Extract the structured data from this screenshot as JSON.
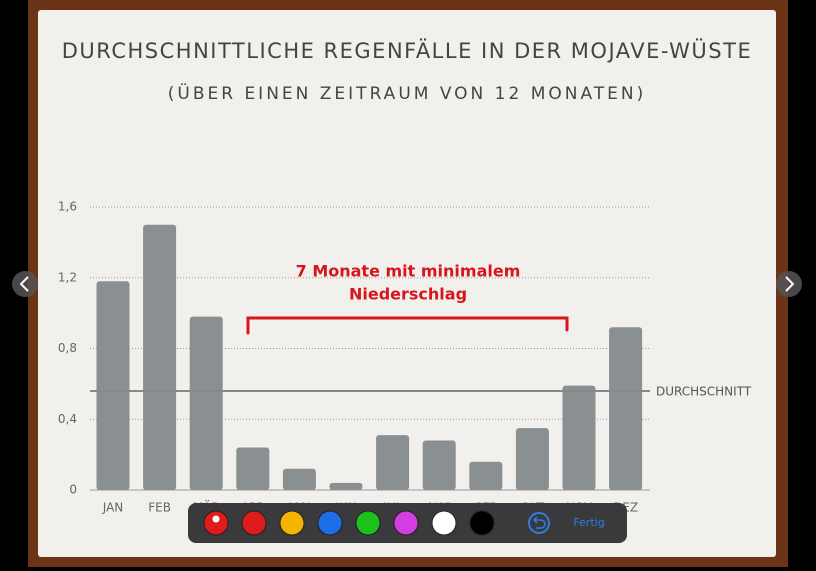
{
  "chart_data": {
    "type": "bar",
    "title": "DURCHSCHNITTLICHE REGENFÄLLE IN DER MOJAVE-WÜSTE",
    "subtitle": "(ÜBER EINEN ZEITRAUM VON 12 MONATEN)",
    "categories": [
      "JAN",
      "FEB",
      "MÄR",
      "APR",
      "MAI",
      "JUN",
      "JUL",
      "AUG",
      "SEP",
      "OKT",
      "NOV",
      "DEZ"
    ],
    "values": [
      1.18,
      1.5,
      0.98,
      0.24,
      0.12,
      0.04,
      0.31,
      0.28,
      0.16,
      0.35,
      0.59,
      0.92
    ],
    "color": "#8a8f92",
    "ylim": [
      0,
      1.6
    ],
    "yticks": [
      0,
      {
        "value": 0.4,
        "label": "0,4"
      },
      {
        "value": 0.8,
        "label": "0,8"
      },
      {
        "value": 1.2,
        "label": "1,2"
      },
      {
        "value": 1.6,
        "label": "1,6"
      }
    ],
    "grid": true,
    "average": {
      "label": "DURCHSCHNITT",
      "value": 0.56
    },
    "annotation": [
      "7 Monate mit minimalem",
      "Niederschlag"
    ]
  },
  "toolbar": {
    "colors": [
      "#e01b1b",
      "#e01b1b",
      "#f5b400",
      "#1c6fe8",
      "#1cc21c",
      "#d23ee0",
      "#ffffff",
      "#000000"
    ],
    "done": "Fertig"
  }
}
